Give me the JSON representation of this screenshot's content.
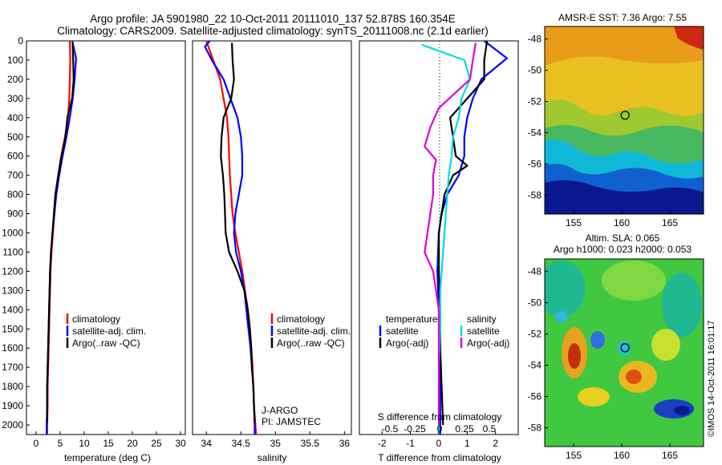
{
  "title_line1": "Argo profile: JA 5901980_22 10-Oct-2011 20111010_137 52.878S 160.354E",
  "title_line2": "Climatology: CARS2009. Satellite-adjusted climatology: synTS_20111008.nc (2.1d earlier)",
  "timestamp": "©IMOS 14-Oct-2011 16:01:17",
  "chart_data": [
    {
      "id": "temperature",
      "type": "line",
      "xlabel": "temperature (deg C)",
      "xlim": [
        -2,
        31
      ],
      "xticks": [
        "0",
        "5",
        "10",
        "15",
        "20",
        "25",
        "30"
      ],
      "ylim": [
        0,
        2050
      ],
      "yticks": [
        "0",
        "100",
        "200",
        "300",
        "400",
        "500",
        "600",
        "700",
        "800",
        "900",
        "1000",
        "1100",
        "1200",
        "1300",
        "1400",
        "1500",
        "1600",
        "1700",
        "1800",
        "1900",
        "2000"
      ],
      "legend": [
        "climatology",
        "satellite-adj. clim.",
        "Argo(..raw -QC)"
      ],
      "series": [
        {
          "name": "climatology",
          "color": "#ff0000",
          "points": [
            [
              7.0,
              0
            ],
            [
              7.1,
              100
            ],
            [
              7.0,
              200
            ],
            [
              6.9,
              300
            ],
            [
              6.6,
              400
            ],
            [
              6.0,
              500
            ],
            [
              5.2,
              600
            ],
            [
              4.6,
              700
            ],
            [
              4.1,
              800
            ],
            [
              3.8,
              900
            ],
            [
              3.5,
              1000
            ],
            [
              3.2,
              1100
            ],
            [
              3.0,
              1200
            ],
            [
              2.9,
              1300
            ],
            [
              2.8,
              1400
            ],
            [
              2.7,
              1500
            ],
            [
              2.6,
              1600
            ],
            [
              2.5,
              1700
            ],
            [
              2.4,
              1800
            ],
            [
              2.4,
              1900
            ],
            [
              2.3,
              2000
            ],
            [
              2.3,
              2050
            ]
          ]
        },
        {
          "name": "satellite-adj. clim.",
          "color": "#0000ff",
          "points": [
            [
              7.5,
              0
            ],
            [
              8.3,
              90
            ],
            [
              8.0,
              200
            ],
            [
              7.6,
              300
            ],
            [
              7.0,
              400
            ],
            [
              6.3,
              500
            ],
            [
              5.5,
              600
            ],
            [
              4.8,
              700
            ],
            [
              4.2,
              800
            ],
            [
              3.8,
              900
            ],
            [
              3.4,
              1000
            ],
            [
              3.1,
              1100
            ],
            [
              2.9,
              1200
            ],
            [
              2.8,
              1300
            ],
            [
              2.7,
              1400
            ],
            [
              2.6,
              1500
            ],
            [
              2.5,
              1600
            ],
            [
              2.4,
              1700
            ],
            [
              2.3,
              1800
            ],
            [
              2.3,
              1900
            ],
            [
              2.2,
              2000
            ],
            [
              2.2,
              2050
            ]
          ]
        },
        {
          "name": "Argo(..raw -QC)",
          "color": "#000000",
          "points": [
            [
              7.6,
              10
            ],
            [
              7.7,
              100
            ],
            [
              7.8,
              200
            ],
            [
              7.5,
              300
            ],
            [
              6.5,
              400
            ],
            [
              6.1,
              500
            ],
            [
              5.3,
              600
            ],
            [
              4.6,
              700
            ],
            [
              4.0,
              800
            ],
            [
              3.7,
              900
            ],
            [
              3.4,
              1000
            ],
            [
              3.1,
              1100
            ],
            [
              2.9,
              1200
            ],
            [
              2.8,
              1300
            ],
            [
              2.7,
              1400
            ],
            [
              2.6,
              1500
            ],
            [
              2.5,
              1600
            ],
            [
              2.4,
              1700
            ],
            [
              2.3,
              1800
            ],
            [
              2.3,
              1900
            ],
            [
              2.3,
              1990
            ]
          ]
        }
      ]
    },
    {
      "id": "salinity",
      "type": "line",
      "xlabel": "salinity",
      "xlim": [
        33.8,
        36.1
      ],
      "xticks": [
        "34",
        "34.5",
        "35",
        "35.5",
        "36"
      ],
      "ylim": [
        0,
        2050
      ],
      "legend": [
        "climatology",
        "satellite-adj. clim.",
        "Argo(..raw -QC)"
      ],
      "annotation": [
        "J-ARGO",
        "PI: JAMSTEC"
      ],
      "series": [
        {
          "name": "climatology",
          "color": "#ff0000",
          "points": [
            [
              34.0,
              0
            ],
            [
              34.05,
              50
            ],
            [
              34.1,
              100
            ],
            [
              34.2,
              200
            ],
            [
              34.25,
              300
            ],
            [
              34.3,
              400
            ],
            [
              34.32,
              500
            ],
            [
              34.33,
              600
            ],
            [
              34.34,
              700
            ],
            [
              34.36,
              800
            ],
            [
              34.38,
              900
            ],
            [
              34.42,
              1000
            ],
            [
              34.47,
              1100
            ],
            [
              34.52,
              1200
            ],
            [
              34.56,
              1300
            ],
            [
              34.6,
              1400
            ],
            [
              34.63,
              1500
            ],
            [
              34.65,
              1600
            ],
            [
              34.67,
              1700
            ],
            [
              34.68,
              1800
            ],
            [
              34.69,
              1900
            ],
            [
              34.71,
              2000
            ],
            [
              34.72,
              2050
            ]
          ]
        },
        {
          "name": "satellite-adj. clim.",
          "color": "#0000ff",
          "points": [
            [
              34.05,
              0
            ],
            [
              33.98,
              30
            ],
            [
              34.08,
              100
            ],
            [
              34.25,
              200
            ],
            [
              34.35,
              300
            ],
            [
              34.45,
              400
            ],
            [
              34.5,
              500
            ],
            [
              34.52,
              600
            ],
            [
              34.52,
              700
            ],
            [
              34.47,
              800
            ],
            [
              34.42,
              900
            ],
            [
              34.4,
              1000
            ],
            [
              34.43,
              1100
            ],
            [
              34.5,
              1200
            ],
            [
              34.55,
              1300
            ],
            [
              34.58,
              1400
            ],
            [
              34.61,
              1500
            ],
            [
              34.64,
              1600
            ],
            [
              34.66,
              1700
            ],
            [
              34.68,
              1800
            ],
            [
              34.69,
              1900
            ],
            [
              34.7,
              2000
            ],
            [
              34.7,
              2050
            ]
          ]
        },
        {
          "name": "Argo(..raw -QC)",
          "color": "#000000",
          "points": [
            [
              34.37,
              10
            ],
            [
              34.38,
              100
            ],
            [
              34.4,
              200
            ],
            [
              34.36,
              300
            ],
            [
              34.25,
              400
            ],
            [
              34.22,
              500
            ],
            [
              34.21,
              600
            ],
            [
              34.24,
              700
            ],
            [
              34.26,
              800
            ],
            [
              34.27,
              900
            ],
            [
              34.28,
              1000
            ],
            [
              34.33,
              1100
            ],
            [
              34.45,
              1200
            ],
            [
              34.55,
              1300
            ],
            [
              34.6,
              1400
            ],
            [
              34.63,
              1500
            ],
            [
              34.65,
              1600
            ],
            [
              34.66,
              1700
            ],
            [
              34.68,
              1800
            ],
            [
              34.69,
              1900
            ],
            [
              34.7,
              1990
            ]
          ]
        }
      ]
    },
    {
      "id": "difference",
      "type": "line",
      "xlabel": "T difference from climatology",
      "xlabel2": "S difference from climatology",
      "xlim": [
        -2.8,
        2.8
      ],
      "xticks": [
        "-2",
        "-1",
        "0",
        "1",
        "2"
      ],
      "xticks2": [
        "-0.5",
        "-0.25",
        "0",
        "0.25",
        "0.5"
      ],
      "ylim": [
        0,
        2050
      ],
      "legend_headers": [
        "temperature",
        "salinity"
      ],
      "legend": [
        "satellite",
        "Argo(-adj)",
        "satellite",
        "Argo(-adj)"
      ],
      "series": [
        {
          "name": "satellite",
          "group": "temperature",
          "color": "#0000ff",
          "points": [
            [
              1.6,
              0
            ],
            [
              2.4,
              90
            ],
            [
              1.5,
              200
            ],
            [
              1.2,
              300
            ],
            [
              1.0,
              400
            ],
            [
              0.9,
              500
            ],
            [
              0.9,
              600
            ],
            [
              0.7,
              700
            ],
            [
              0.3,
              800
            ],
            [
              0.1,
              900
            ],
            [
              0.0,
              1000
            ],
            [
              -0.05,
              1200
            ],
            [
              0.0,
              1400
            ],
            [
              0.05,
              1600
            ],
            [
              0.05,
              1800
            ],
            [
              0.05,
              2050
            ]
          ]
        },
        {
          "name": "Argo(-adj)",
          "group": "temperature",
          "color": "#000000",
          "points": [
            [
              1.7,
              0
            ],
            [
              1.6,
              100
            ],
            [
              1.6,
              200
            ],
            [
              1.0,
              300
            ],
            [
              0.4,
              400
            ],
            [
              0.5,
              500
            ],
            [
              0.6,
              600
            ],
            [
              1.0,
              650
            ],
            [
              0.5,
              700
            ],
            [
              0.2,
              800
            ],
            [
              0.1,
              900
            ],
            [
              0.0,
              1000
            ],
            [
              0.0,
              1200
            ],
            [
              0.05,
              1400
            ],
            [
              0.05,
              1600
            ],
            [
              0.1,
              1800
            ],
            [
              0.15,
              2000
            ]
          ]
        },
        {
          "name": "satellite",
          "group": "salinity",
          "color": "#00dddd",
          "points": [
            [
              -0.6,
              20
            ],
            [
              0.9,
              100
            ],
            [
              1.1,
              200
            ],
            [
              0.8,
              300
            ],
            [
              0.7,
              400
            ],
            [
              0.5,
              500
            ],
            [
              0.45,
              600
            ],
            [
              0.35,
              700
            ],
            [
              0.3,
              800
            ],
            [
              0.25,
              900
            ],
            [
              0.2,
              1000
            ],
            [
              0.15,
              1100
            ],
            [
              0.1,
              1200
            ],
            [
              0.05,
              1300
            ],
            [
              0.05,
              1500
            ],
            [
              0.0,
              1700
            ],
            [
              0.0,
              1900
            ],
            [
              0.0,
              2050
            ]
          ]
        },
        {
          "name": "Argo(-adj)",
          "group": "salinity",
          "color": "#dd00dd",
          "points": [
            [
              1.3,
              10
            ],
            [
              1.2,
              100
            ],
            [
              1.1,
              200
            ],
            [
              0.0,
              350
            ],
            [
              -0.3,
              450
            ],
            [
              -0.5,
              550
            ],
            [
              -0.1,
              620
            ],
            [
              -0.2,
              700
            ],
            [
              -0.2,
              800
            ],
            [
              -0.3,
              900
            ],
            [
              -0.4,
              1000
            ],
            [
              -0.5,
              1100
            ],
            [
              -0.2,
              1200
            ],
            [
              0.0,
              1400
            ],
            [
              0.0,
              1600
            ],
            [
              0.0,
              1800
            ],
            [
              0.0,
              2000
            ]
          ]
        }
      ]
    },
    {
      "id": "sst-map",
      "type": "heatmap",
      "title": "AMSR-E SST: 7.36 Argo: 7.55",
      "xticks": [
        "155",
        "160",
        "165"
      ],
      "yticks": [
        "-48",
        "-50",
        "-52",
        "-54",
        "-56",
        "-58"
      ],
      "xlim": [
        152,
        168.5
      ],
      "ylim": [
        -59.2,
        -47.2
      ],
      "argo_position": [
        160.35,
        -52.88
      ]
    },
    {
      "id": "sla-map",
      "type": "heatmap",
      "title": "Altim. SLA: 0.065",
      "subtitle": "Argo h1000: 0.023 h2000: 0.053",
      "xticks": [
        "155",
        "160",
        "165"
      ],
      "yticks": [
        "-48",
        "-50",
        "-52",
        "-54",
        "-56",
        "-58"
      ],
      "xlim": [
        152,
        168.5
      ],
      "ylim": [
        -59.2,
        -47.2
      ],
      "argo_position": [
        160.35,
        -52.88
      ]
    }
  ]
}
